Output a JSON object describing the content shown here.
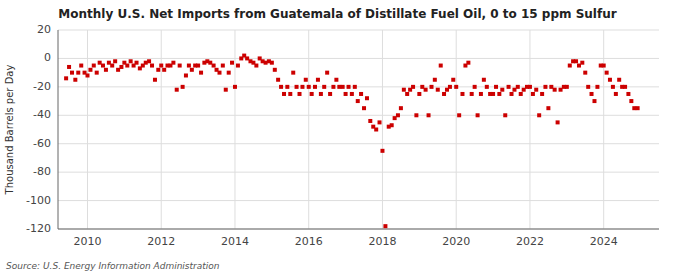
{
  "chart_data": {
    "type": "scatter",
    "title": "Monthly U.S. Net Imports from Guatemala of Distillate Fuel Oil, 0 to 15 ppm Sulfur",
    "y_label": "Thousand Barrels per Day",
    "source": "Source: U.S. Energy Information Administration",
    "color": "#cc0000",
    "marker": "square",
    "grid": true,
    "xlim": [
      2009.2,
      2025.5
    ],
    "ylim": [
      -120,
      20
    ],
    "xticks": [
      2010,
      2012,
      2014,
      2016,
      2018,
      2020,
      2022,
      2024
    ],
    "yticks": [
      20,
      0,
      -20,
      -40,
      -60,
      -80,
      -100,
      -120
    ],
    "x": [
      2009.42,
      2009.5,
      2009.58,
      2009.67,
      2009.75,
      2009.83,
      2009.92,
      2010.0,
      2010.08,
      2010.17,
      2010.25,
      2010.33,
      2010.42,
      2010.5,
      2010.58,
      2010.67,
      2010.75,
      2010.83,
      2010.92,
      2011.0,
      2011.08,
      2011.17,
      2011.25,
      2011.33,
      2011.42,
      2011.5,
      2011.58,
      2011.67,
      2011.75,
      2011.83,
      2011.92,
      2012.0,
      2012.08,
      2012.17,
      2012.25,
      2012.33,
      2012.42,
      2012.5,
      2012.58,
      2012.67,
      2012.75,
      2012.83,
      2012.92,
      2013.0,
      2013.08,
      2013.17,
      2013.25,
      2013.33,
      2013.42,
      2013.5,
      2013.58,
      2013.67,
      2013.75,
      2013.83,
      2013.92,
      2014.0,
      2014.08,
      2014.17,
      2014.25,
      2014.33,
      2014.42,
      2014.5,
      2014.58,
      2014.67,
      2014.75,
      2014.83,
      2014.92,
      2015.0,
      2015.08,
      2015.17,
      2015.25,
      2015.33,
      2015.42,
      2015.5,
      2015.58,
      2015.67,
      2015.75,
      2015.83,
      2015.92,
      2016.0,
      2016.08,
      2016.17,
      2016.25,
      2016.33,
      2016.42,
      2016.5,
      2016.58,
      2016.67,
      2016.75,
      2016.83,
      2016.92,
      2017.0,
      2017.08,
      2017.17,
      2017.25,
      2017.33,
      2017.42,
      2017.5,
      2017.58,
      2017.67,
      2017.75,
      2017.83,
      2017.92,
      2018.0,
      2018.08,
      2018.17,
      2018.25,
      2018.33,
      2018.42,
      2018.5,
      2018.58,
      2018.67,
      2018.75,
      2018.83,
      2018.92,
      2019.0,
      2019.08,
      2019.17,
      2019.25,
      2019.33,
      2019.42,
      2019.5,
      2019.58,
      2019.67,
      2019.75,
      2019.83,
      2019.92,
      2020.0,
      2020.08,
      2020.17,
      2020.25,
      2020.33,
      2020.42,
      2020.5,
      2020.58,
      2020.67,
      2020.75,
      2020.83,
      2020.92,
      2021.0,
      2021.08,
      2021.17,
      2021.25,
      2021.33,
      2021.42,
      2021.5,
      2021.58,
      2021.67,
      2021.75,
      2021.83,
      2021.92,
      2022.0,
      2022.08,
      2022.17,
      2022.25,
      2022.33,
      2022.42,
      2022.5,
      2022.58,
      2022.67,
      2022.75,
      2022.83,
      2022.92,
      2023.0,
      2023.08,
      2023.17,
      2023.25,
      2023.33,
      2023.42,
      2023.5,
      2023.58,
      2023.67,
      2023.75,
      2023.83,
      2023.92,
      2024.0,
      2024.08,
      2024.17,
      2024.25,
      2024.33,
      2024.42,
      2024.5,
      2024.58,
      2024.67,
      2024.75,
      2024.83,
      2024.92
    ],
    "values": [
      -14,
      -6,
      -10,
      -15,
      -10,
      -5,
      -10,
      -12,
      -8,
      -5,
      -10,
      -3,
      -5,
      -8,
      -3,
      -5,
      -2,
      -8,
      -6,
      -3,
      -5,
      -2,
      -5,
      -3,
      -7,
      -5,
      -3,
      -2,
      -5,
      -15,
      -8,
      -5,
      -8,
      -5,
      -5,
      -3,
      -22,
      -5,
      -20,
      -12,
      -5,
      -8,
      -5,
      -5,
      -10,
      -3,
      -2,
      -3,
      -5,
      -8,
      -10,
      -5,
      -22,
      -10,
      -3,
      -20,
      -5,
      0,
      2,
      0,
      -2,
      -3,
      -5,
      0,
      -2,
      -3,
      -2,
      -3,
      -8,
      -15,
      -20,
      -25,
      -20,
      -25,
      -10,
      -20,
      -25,
      -20,
      -15,
      -20,
      -25,
      -20,
      -15,
      -25,
      -20,
      -10,
      -25,
      -20,
      -15,
      -20,
      -20,
      -25,
      -20,
      -25,
      -20,
      -30,
      -25,
      -35,
      -28,
      -44,
      -48,
      -50,
      -45,
      -65,
      -118,
      -48,
      -47,
      -42,
      -40,
      -35,
      -22,
      -25,
      -22,
      -20,
      -40,
      -25,
      -20,
      -22,
      -40,
      -20,
      -15,
      -22,
      -5,
      -25,
      -22,
      -20,
      -15,
      -20,
      -40,
      -25,
      -5,
      -3,
      -25,
      -20,
      -40,
      -25,
      -15,
      -20,
      -25,
      -25,
      -20,
      -25,
      -22,
      -40,
      -20,
      -25,
      -22,
      -20,
      -25,
      -22,
      -20,
      -20,
      -25,
      -22,
      -40,
      -25,
      -20,
      -35,
      -20,
      -22,
      -45,
      -22,
      -20,
      -20,
      -5,
      -2,
      -2,
      -5,
      -3,
      -10,
      -20,
      -25,
      -30,
      -20,
      -5,
      -5,
      -10,
      -15,
      -20,
      -25,
      -15,
      -20,
      -20,
      -25,
      -30,
      -35,
      -35
    ]
  }
}
